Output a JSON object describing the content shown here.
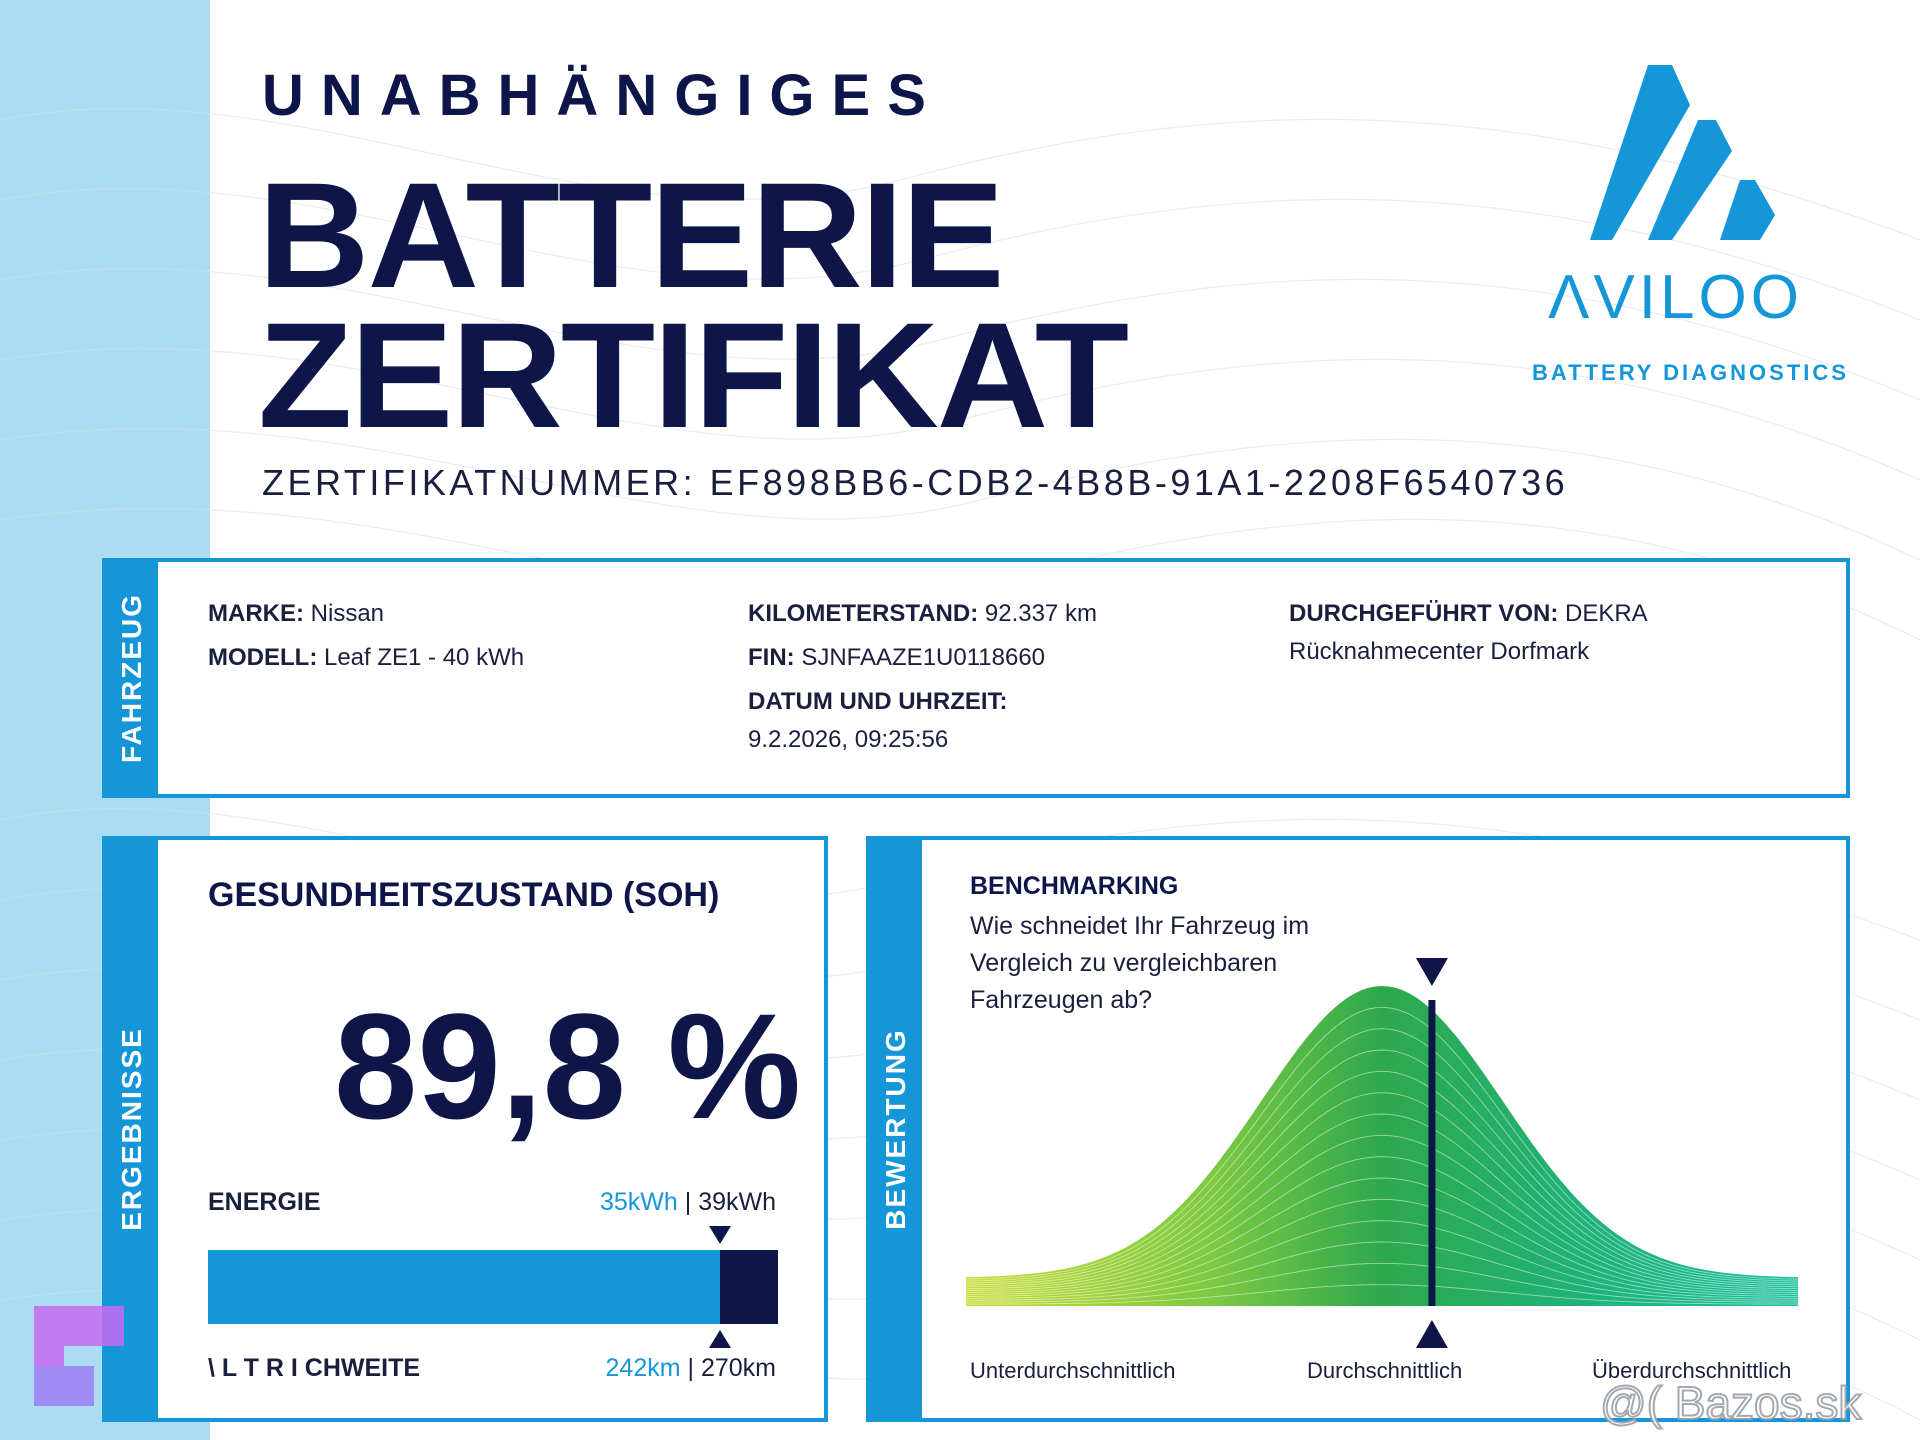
{
  "header": {
    "subtitle": "UNABHÄNGIGES",
    "title_line1": "BATTERIE",
    "title_line2": "ZERTIFIKAT",
    "certificate_number": "ZERTIFIKATNUMMER: EF898BB6-CDB2-4B8B-91A1-2208F6540736"
  },
  "brand": {
    "name": "ΛVILOO",
    "tagline": "BATTERY DIAGNOSTICS",
    "color": "#1596d8"
  },
  "vehicle": {
    "tab_label": "FAHRZEUG",
    "make_label": "MARKE:",
    "make_value": "Nissan",
    "model_label": "MODELL:",
    "model_value": "Leaf ZE1 - 40 kWh",
    "mileage_label": "KILOMETERSTAND:",
    "mileage_value": "92.337 km",
    "vin_label": "FIN:",
    "vin_value": "SJNFAAZE1U0118660",
    "datetime_label": "DATUM UND UHRZEIT:",
    "datetime_value": "9.2.2026, 09:25:56",
    "performed_by_label": "DURCHGEFÜHRT VON:",
    "performed_by_value": "DEKRA",
    "performed_by_location": "Rücknahmecenter Dorfmark"
  },
  "results": {
    "tab_label": "ERGEBNISSE",
    "soh_title": "GESUNDHEITSZUSTAND (SOH)",
    "soh_value": "89,8 %",
    "energy_label": "ENERGIE",
    "energy_current": "35kWh",
    "energy_separator": " | ",
    "energy_max": "39kWh",
    "energy_fraction": 0.898,
    "range_label": "\\ L T R I CHWEITE",
    "range_current": "242km",
    "range_separator": " | ",
    "range_max": "270km"
  },
  "rating": {
    "tab_label": "BEWERTUNG",
    "bench_title": "BENCHMARKING",
    "bench_question": "Wie schneidet Ihr Fahrzeug im Vergleich zu vergleichbaren Fahrzeugen ab?",
    "axis_low": "Unterdurchschnittlich",
    "axis_mid": "Durchschnittlich",
    "axis_high": "Überdurchschnittlich",
    "marker_position": 0.56
  },
  "watermark": {
    "text": "@( Bazos.sk"
  },
  "colors": {
    "navy": "#0e1549",
    "accent_blue": "#1596d8",
    "side_band": "#abdcf2"
  }
}
